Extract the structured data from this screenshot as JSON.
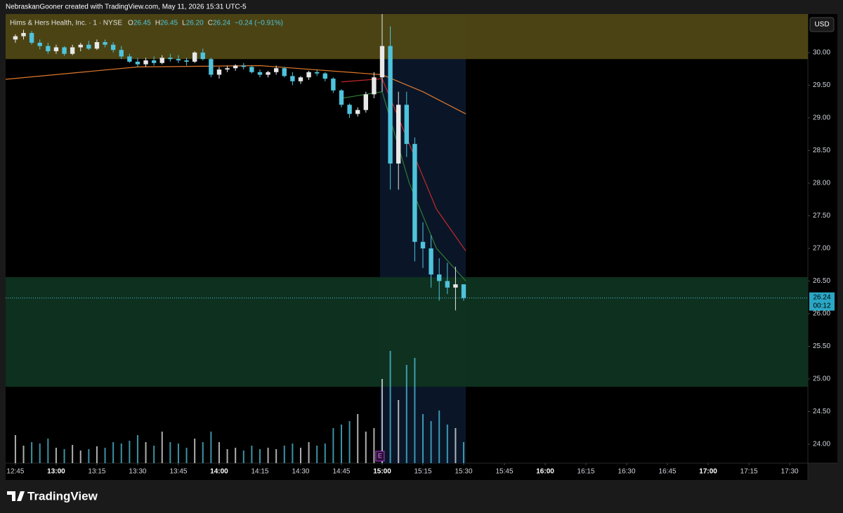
{
  "header": {
    "credit": "NebraskanGooner created with TradingView.com, May 11, 2026 15:31 UTC-5",
    "currency": "USD",
    "logo": "TradingView"
  },
  "chart_data": {
    "type": "candlestick",
    "symbol": "Hims & Hers Health, Inc. · 1 · NYSE",
    "legend": [
      {
        "label": "O",
        "value": "26.45"
      },
      {
        "label": "H",
        "value": "26.45"
      },
      {
        "label": "L",
        "value": "26.20"
      },
      {
        "label": "C",
        "value": "26.24"
      },
      {
        "label": "",
        "value": "−0.24 (−0.91%)"
      }
    ],
    "up_color": "#e8e8e8",
    "down_color": "#4fc3dc",
    "xlim": [
      -3.6,
      291.7
    ],
    "xticks": [
      {
        "value": 0,
        "label": "12:45"
      },
      {
        "value": 15,
        "label": "13:00"
      },
      {
        "value": 30,
        "label": "13:15"
      },
      {
        "value": 45,
        "label": "13:30"
      },
      {
        "value": 60,
        "label": "13:45"
      },
      {
        "value": 75,
        "label": "14:00"
      },
      {
        "value": 90,
        "label": "14:15"
      },
      {
        "value": 105,
        "label": "14:30"
      },
      {
        "value": 120,
        "label": "14:45"
      },
      {
        "value": 135,
        "label": "15:00"
      },
      {
        "value": 150,
        "label": "15:15"
      },
      {
        "value": 165,
        "label": "15:30"
      },
      {
        "value": 180,
        "label": "15:45"
      },
      {
        "value": 195,
        "label": "16:00"
      },
      {
        "value": 210,
        "label": "16:15"
      },
      {
        "value": 225,
        "label": "16:30"
      },
      {
        "value": 240,
        "label": "16:45"
      },
      {
        "value": 255,
        "label": "17:00"
      },
      {
        "value": 270,
        "label": "17:15"
      },
      {
        "value": 285,
        "label": "17:30"
      }
    ],
    "ylim": [
      23.71,
      30.59
    ],
    "yticks": [
      {
        "value": 24,
        "label": "24.00"
      },
      {
        "value": 24.5,
        "label": "24.50"
      },
      {
        "value": 25,
        "label": "25.00"
      },
      {
        "value": 25.5,
        "label": "25.50"
      },
      {
        "value": 26,
        "label": "26.00"
      },
      {
        "value": 26.5,
        "label": "26.50"
      },
      {
        "value": 27,
        "label": "27.00"
      },
      {
        "value": 27.5,
        "label": "27.50"
      },
      {
        "value": 28,
        "label": "28.00"
      },
      {
        "value": 28.5,
        "label": "28.50"
      },
      {
        "value": 29,
        "label": "29.00"
      },
      {
        "value": 29.5,
        "label": "29.50"
      },
      {
        "value": 30,
        "label": "30.00"
      }
    ],
    "zones": [
      {
        "from": 29.9,
        "to": 30.59,
        "color": "#4f4714"
      },
      {
        "from": 24.88,
        "to": 26.56,
        "color": "#0f3320"
      }
    ],
    "highlight_x": [
      134.2,
      165.8
    ],
    "highlight_color": "#0a1628",
    "earnings_marker": "E",
    "last_price": {
      "value": 26.24,
      "label": "26.24",
      "countdown": "00:12"
    },
    "candles": {
      "x": [
        0,
        3,
        6,
        9,
        12,
        15,
        18,
        21,
        24,
        27,
        30,
        33,
        36,
        39,
        42,
        45,
        48,
        51,
        54,
        57,
        60,
        63,
        66,
        69,
        72,
        75,
        78,
        81,
        84,
        87,
        90,
        93,
        96,
        99,
        102,
        105,
        108,
        111,
        114,
        117,
        120,
        123,
        126,
        129,
        132,
        135,
        138,
        141,
        144,
        147,
        150,
        153,
        156,
        159,
        162,
        165
      ],
      "open": [
        30.2,
        30.25,
        30.3,
        30.15,
        30.1,
        30.02,
        30.08,
        29.98,
        30.08,
        30.12,
        30.06,
        30.16,
        30.12,
        30.04,
        29.94,
        29.86,
        29.82,
        29.88,
        29.84,
        29.92,
        29.9,
        29.88,
        29.86,
        30.0,
        29.9,
        29.66,
        29.74,
        29.76,
        29.8,
        29.78,
        29.7,
        29.66,
        29.7,
        29.76,
        29.64,
        29.56,
        29.62,
        29.7,
        29.68,
        29.6,
        29.42,
        29.2,
        29.06,
        29.12,
        29.36,
        29.62,
        30.1,
        28.3,
        29.2,
        28.6,
        27.1,
        27.0,
        26.6,
        26.5,
        26.4,
        26.45
      ],
      "high": [
        30.28,
        30.35,
        30.33,
        30.2,
        30.15,
        30.12,
        30.1,
        30.12,
        30.15,
        30.18,
        30.2,
        30.2,
        30.16,
        30.1,
        29.98,
        29.92,
        29.92,
        29.94,
        29.96,
        29.98,
        29.96,
        29.92,
        30.02,
        30.06,
        29.92,
        29.78,
        29.8,
        29.82,
        29.84,
        29.8,
        29.74,
        29.72,
        29.8,
        29.78,
        29.7,
        29.64,
        29.72,
        29.74,
        29.7,
        29.62,
        29.44,
        29.22,
        29.16,
        29.4,
        29.7,
        30.62,
        30.4,
        29.4,
        29.4,
        28.7,
        27.4,
        27.2,
        26.85,
        26.78,
        26.72,
        26.45
      ],
      "low": [
        30.15,
        30.2,
        30.12,
        30.05,
        29.98,
        29.98,
        29.95,
        29.96,
        30.02,
        30.04,
        30.04,
        30.08,
        30.0,
        29.9,
        29.84,
        29.78,
        29.78,
        29.8,
        29.82,
        29.86,
        29.84,
        29.8,
        29.84,
        29.88,
        29.62,
        29.6,
        29.7,
        29.72,
        29.74,
        29.68,
        29.62,
        29.62,
        29.66,
        29.62,
        29.5,
        29.52,
        29.58,
        29.64,
        29.56,
        29.38,
        29.16,
        29.0,
        29.02,
        29.08,
        29.3,
        29.4,
        27.9,
        27.9,
        28.4,
        26.8,
        26.7,
        26.4,
        26.2,
        26.3,
        26.05,
        26.2
      ],
      "close": [
        30.25,
        30.3,
        30.15,
        30.1,
        30.02,
        30.08,
        29.98,
        30.08,
        30.12,
        30.06,
        30.16,
        30.12,
        30.04,
        29.94,
        29.86,
        29.82,
        29.88,
        29.84,
        29.92,
        29.9,
        29.88,
        29.86,
        30.0,
        29.9,
        29.66,
        29.74,
        29.76,
        29.8,
        29.78,
        29.7,
        29.66,
        29.7,
        29.76,
        29.64,
        29.56,
        29.62,
        29.7,
        29.68,
        29.6,
        29.42,
        29.2,
        29.06,
        29.12,
        29.36,
        29.62,
        30.1,
        28.3,
        29.2,
        28.6,
        27.1,
        27.0,
        26.6,
        26.5,
        26.4,
        26.45,
        26.24
      ],
      "volume": [
        40,
        25,
        30,
        28,
        35,
        22,
        20,
        26,
        18,
        20,
        24,
        22,
        30,
        28,
        32,
        40,
        30,
        25,
        45,
        30,
        28,
        22,
        35,
        30,
        45,
        30,
        20,
        22,
        18,
        25,
        20,
        22,
        20,
        25,
        28,
        22,
        30,
        25,
        28,
        50,
        55,
        60,
        70,
        45,
        50,
        120,
        160,
        90,
        140,
        150,
        70,
        60,
        75,
        55,
        50,
        30
      ]
    },
    "lines": [
      {
        "color": "#e0782c",
        "x": [
          -3.6,
          45,
          90,
          135,
          150,
          165.8
        ],
        "values": [
          29.59,
          29.78,
          29.8,
          29.66,
          29.4,
          29.06
        ]
      },
      {
        "color": "#c62828",
        "x": [
          120,
          135,
          145,
          155,
          165.8
        ],
        "values": [
          29.55,
          29.6,
          28.6,
          27.6,
          26.96
        ]
      },
      {
        "color": "#2e7d32",
        "x": [
          120,
          135,
          145,
          155,
          165.8
        ],
        "values": [
          29.3,
          29.4,
          28.0,
          27.0,
          26.5
        ]
      }
    ]
  }
}
